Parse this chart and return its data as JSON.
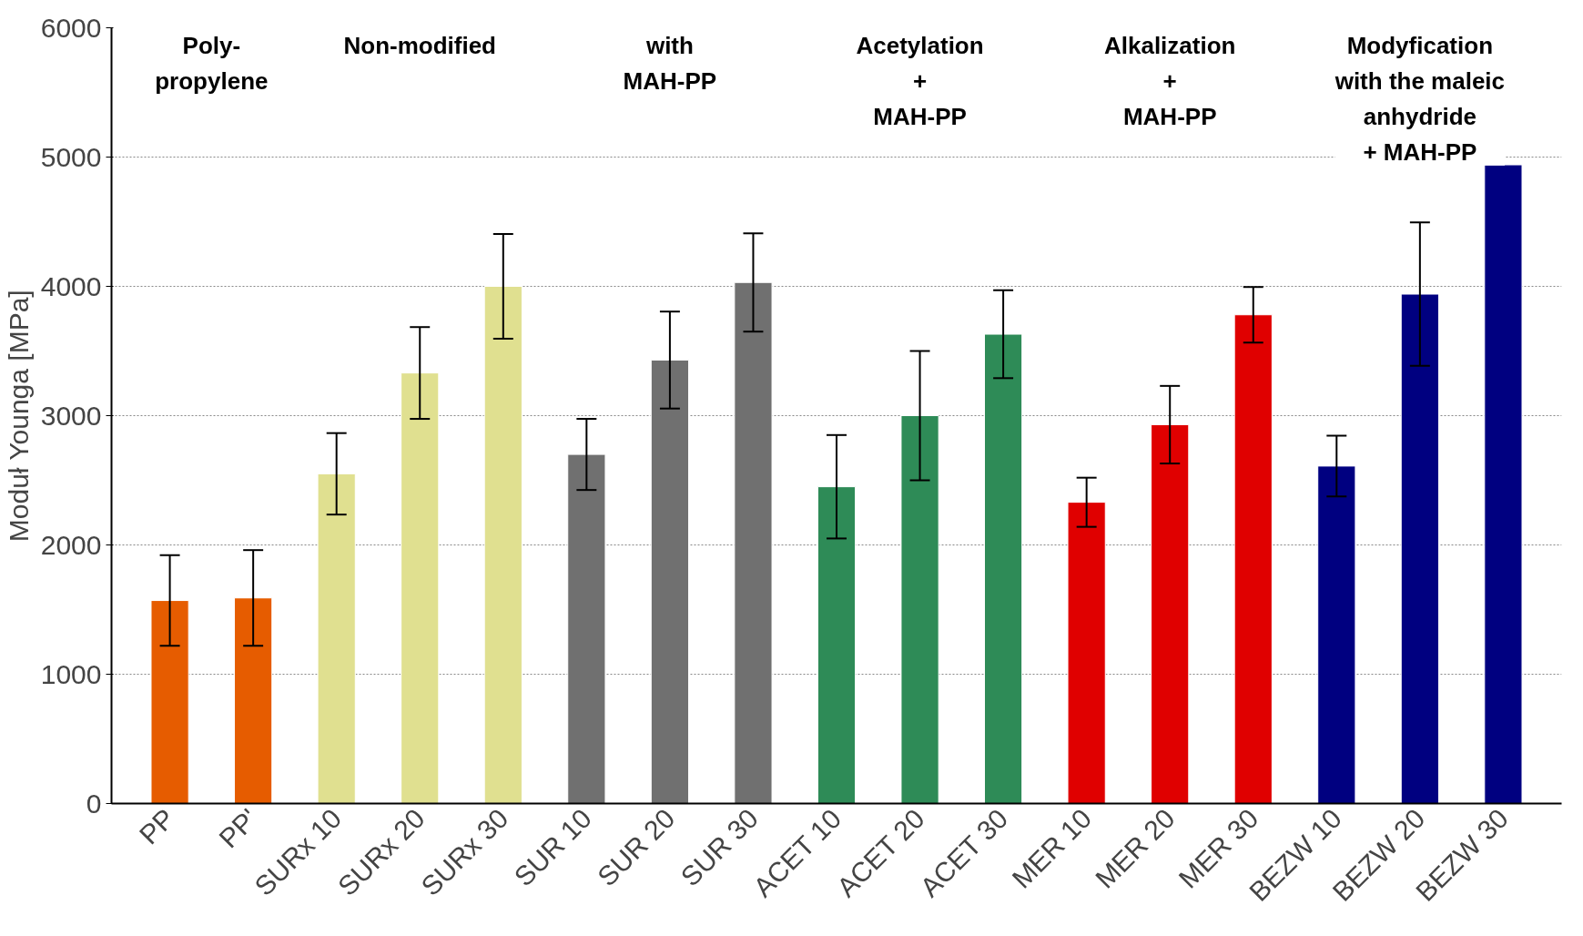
{
  "chart_data": {
    "type": "bar",
    "ylabel": "Moduł Younga [MPa]",
    "categories": [
      "PP",
      "PP'",
      "SURx 10",
      "SURx 20",
      "SURx 30",
      "SUR 10",
      "SUR 20",
      "SUR 30",
      "ACET 10",
      "ACET 20",
      "ACET 30",
      "MER 10",
      "MER 20",
      "MER 30",
      "BEZW 10",
      "BEZW 20",
      "BEZW 30"
    ],
    "values": [
      1570,
      1590,
      2550,
      3330,
      4000,
      2700,
      3430,
      4030,
      2450,
      3000,
      3630,
      2330,
      2930,
      3780,
      2610,
      3940,
      4940
    ],
    "errors": [
      350,
      370,
      315,
      355,
      405,
      275,
      375,
      380,
      400,
      500,
      340,
      190,
      300,
      215,
      235,
      555,
      null
    ],
    "colors": [
      "#e65c00",
      "#e65c00",
      "#e0e090",
      "#e0e090",
      "#e0e090",
      "#707070",
      "#707070",
      "#707070",
      "#2e8b57",
      "#2e8b57",
      "#2e8b57",
      "#e00000",
      "#e00000",
      "#e00000",
      "#000080",
      "#000080",
      "#000080"
    ],
    "ylim": [
      0,
      6000
    ],
    "yticks": [
      0,
      1000,
      2000,
      3000,
      4000,
      5000,
      6000
    ],
    "grid": "y",
    "annotations": [
      "Poly-\npropylene",
      "Non-modified",
      "with\nMAH-PP",
      "Acetylation\n+\nMAH-PP",
      "Alkalization\n+\nMAH-PP",
      "Modyfication\nwith the maleic\nanhydride\n+ MAH-PP"
    ]
  }
}
